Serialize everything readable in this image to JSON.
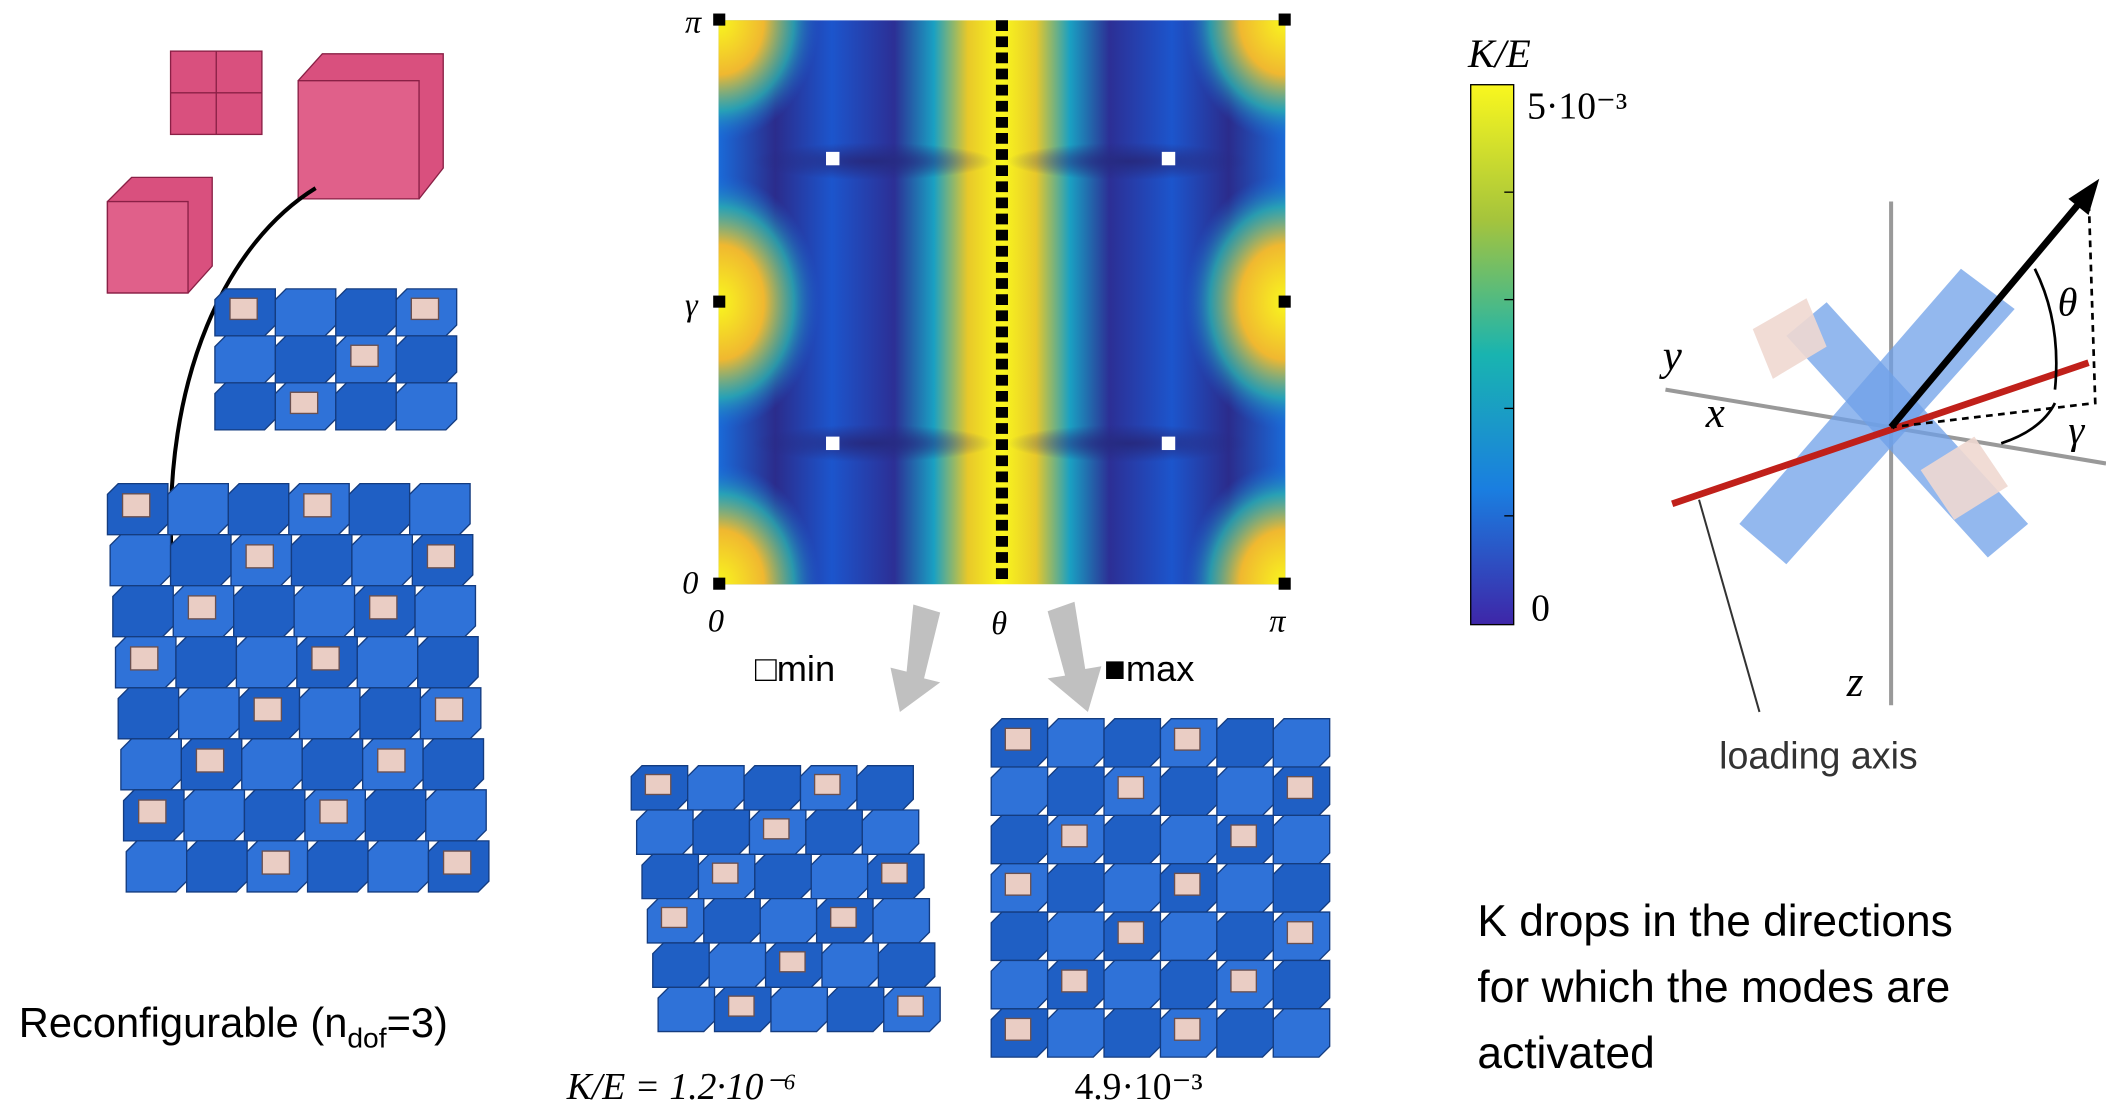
{
  "heatmap": {
    "y_axis_labels": [
      "0",
      "γ",
      "π"
    ],
    "x_axis_labels": [
      "0",
      "θ",
      "π"
    ]
  },
  "legend": {
    "min": "□min",
    "max": "■max"
  },
  "colorbar": {
    "title": "K/E",
    "max_label": "5·10⁻³",
    "min_label": "0"
  },
  "axes_diagram": {
    "y": "y",
    "x": "x",
    "z": "z",
    "theta": "θ",
    "gamma": "γ",
    "loading_axis": "loading axis"
  },
  "left_caption": {
    "text": "Reconfigurable (n",
    "subscript": "dof",
    "suffix": "=3)"
  },
  "bottom_captions": [
    "K/E = 1.2·10⁻⁶",
    "4.9·10⁻³"
  ],
  "right_note": [
    "K drops in the directions",
    "for which the modes are",
    "activated"
  ]
}
